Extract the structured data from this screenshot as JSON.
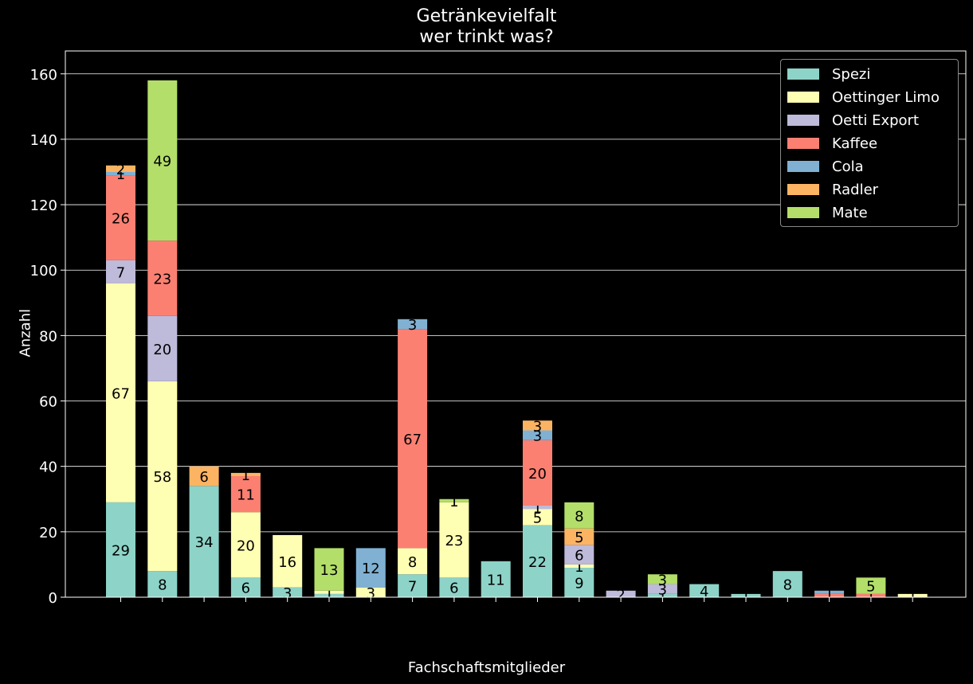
{
  "chart_data": {
    "type": "bar",
    "stacked": true,
    "title": [
      "Getränkevielfalt",
      "wer trinkt was?"
    ],
    "xlabel": "Fachschaftsmitglieder",
    "ylabel": "Anzahl",
    "ylim": [
      0,
      167
    ],
    "yticks": [
      0,
      20,
      40,
      60,
      80,
      100,
      120,
      140,
      160
    ],
    "grid": "horizontal",
    "legend_position": "top-right",
    "categories_count": 20,
    "series": [
      {
        "name": "Spezi",
        "color": "#8dd3c7",
        "values": [
          29,
          8,
          34,
          6,
          3,
          1,
          0,
          7,
          6,
          11,
          22,
          9,
          0,
          1,
          4,
          1,
          8,
          0,
          0,
          0
        ]
      },
      {
        "name": "Oettinger Limo",
        "color": "#ffffb3",
        "values": [
          67,
          58,
          0,
          20,
          16,
          1,
          3,
          8,
          23,
          0,
          5,
          1,
          0,
          0,
          0,
          0,
          0,
          0,
          0,
          1
        ]
      },
      {
        "name": "Oetti Export",
        "color": "#bebada",
        "values": [
          7,
          20,
          0,
          0,
          0,
          0,
          0,
          0,
          0,
          0,
          1,
          6,
          2,
          3,
          0,
          0,
          0,
          0,
          0,
          0
        ]
      },
      {
        "name": "Kaffee",
        "color": "#fb8072",
        "values": [
          26,
          23,
          0,
          11,
          0,
          0,
          0,
          67,
          0,
          0,
          20,
          0,
          0,
          0,
          0,
          0,
          0,
          1,
          1,
          0
        ]
      },
      {
        "name": "Cola",
        "color": "#80b1d3",
        "values": [
          1,
          0,
          0,
          0,
          0,
          0,
          12,
          3,
          0,
          0,
          3,
          0,
          0,
          0,
          0,
          0,
          0,
          1,
          0,
          0
        ]
      },
      {
        "name": "Radler",
        "color": "#fdb462",
        "values": [
          2,
          0,
          6,
          1,
          0,
          0,
          0,
          0,
          0,
          0,
          3,
          5,
          0,
          0,
          0,
          0,
          0,
          0,
          0,
          0
        ]
      },
      {
        "name": "Mate",
        "color": "#b3de69",
        "values": [
          0,
          49,
          0,
          0,
          0,
          13,
          0,
          0,
          1,
          0,
          0,
          8,
          0,
          3,
          0,
          0,
          0,
          0,
          5,
          0
        ]
      }
    ]
  }
}
